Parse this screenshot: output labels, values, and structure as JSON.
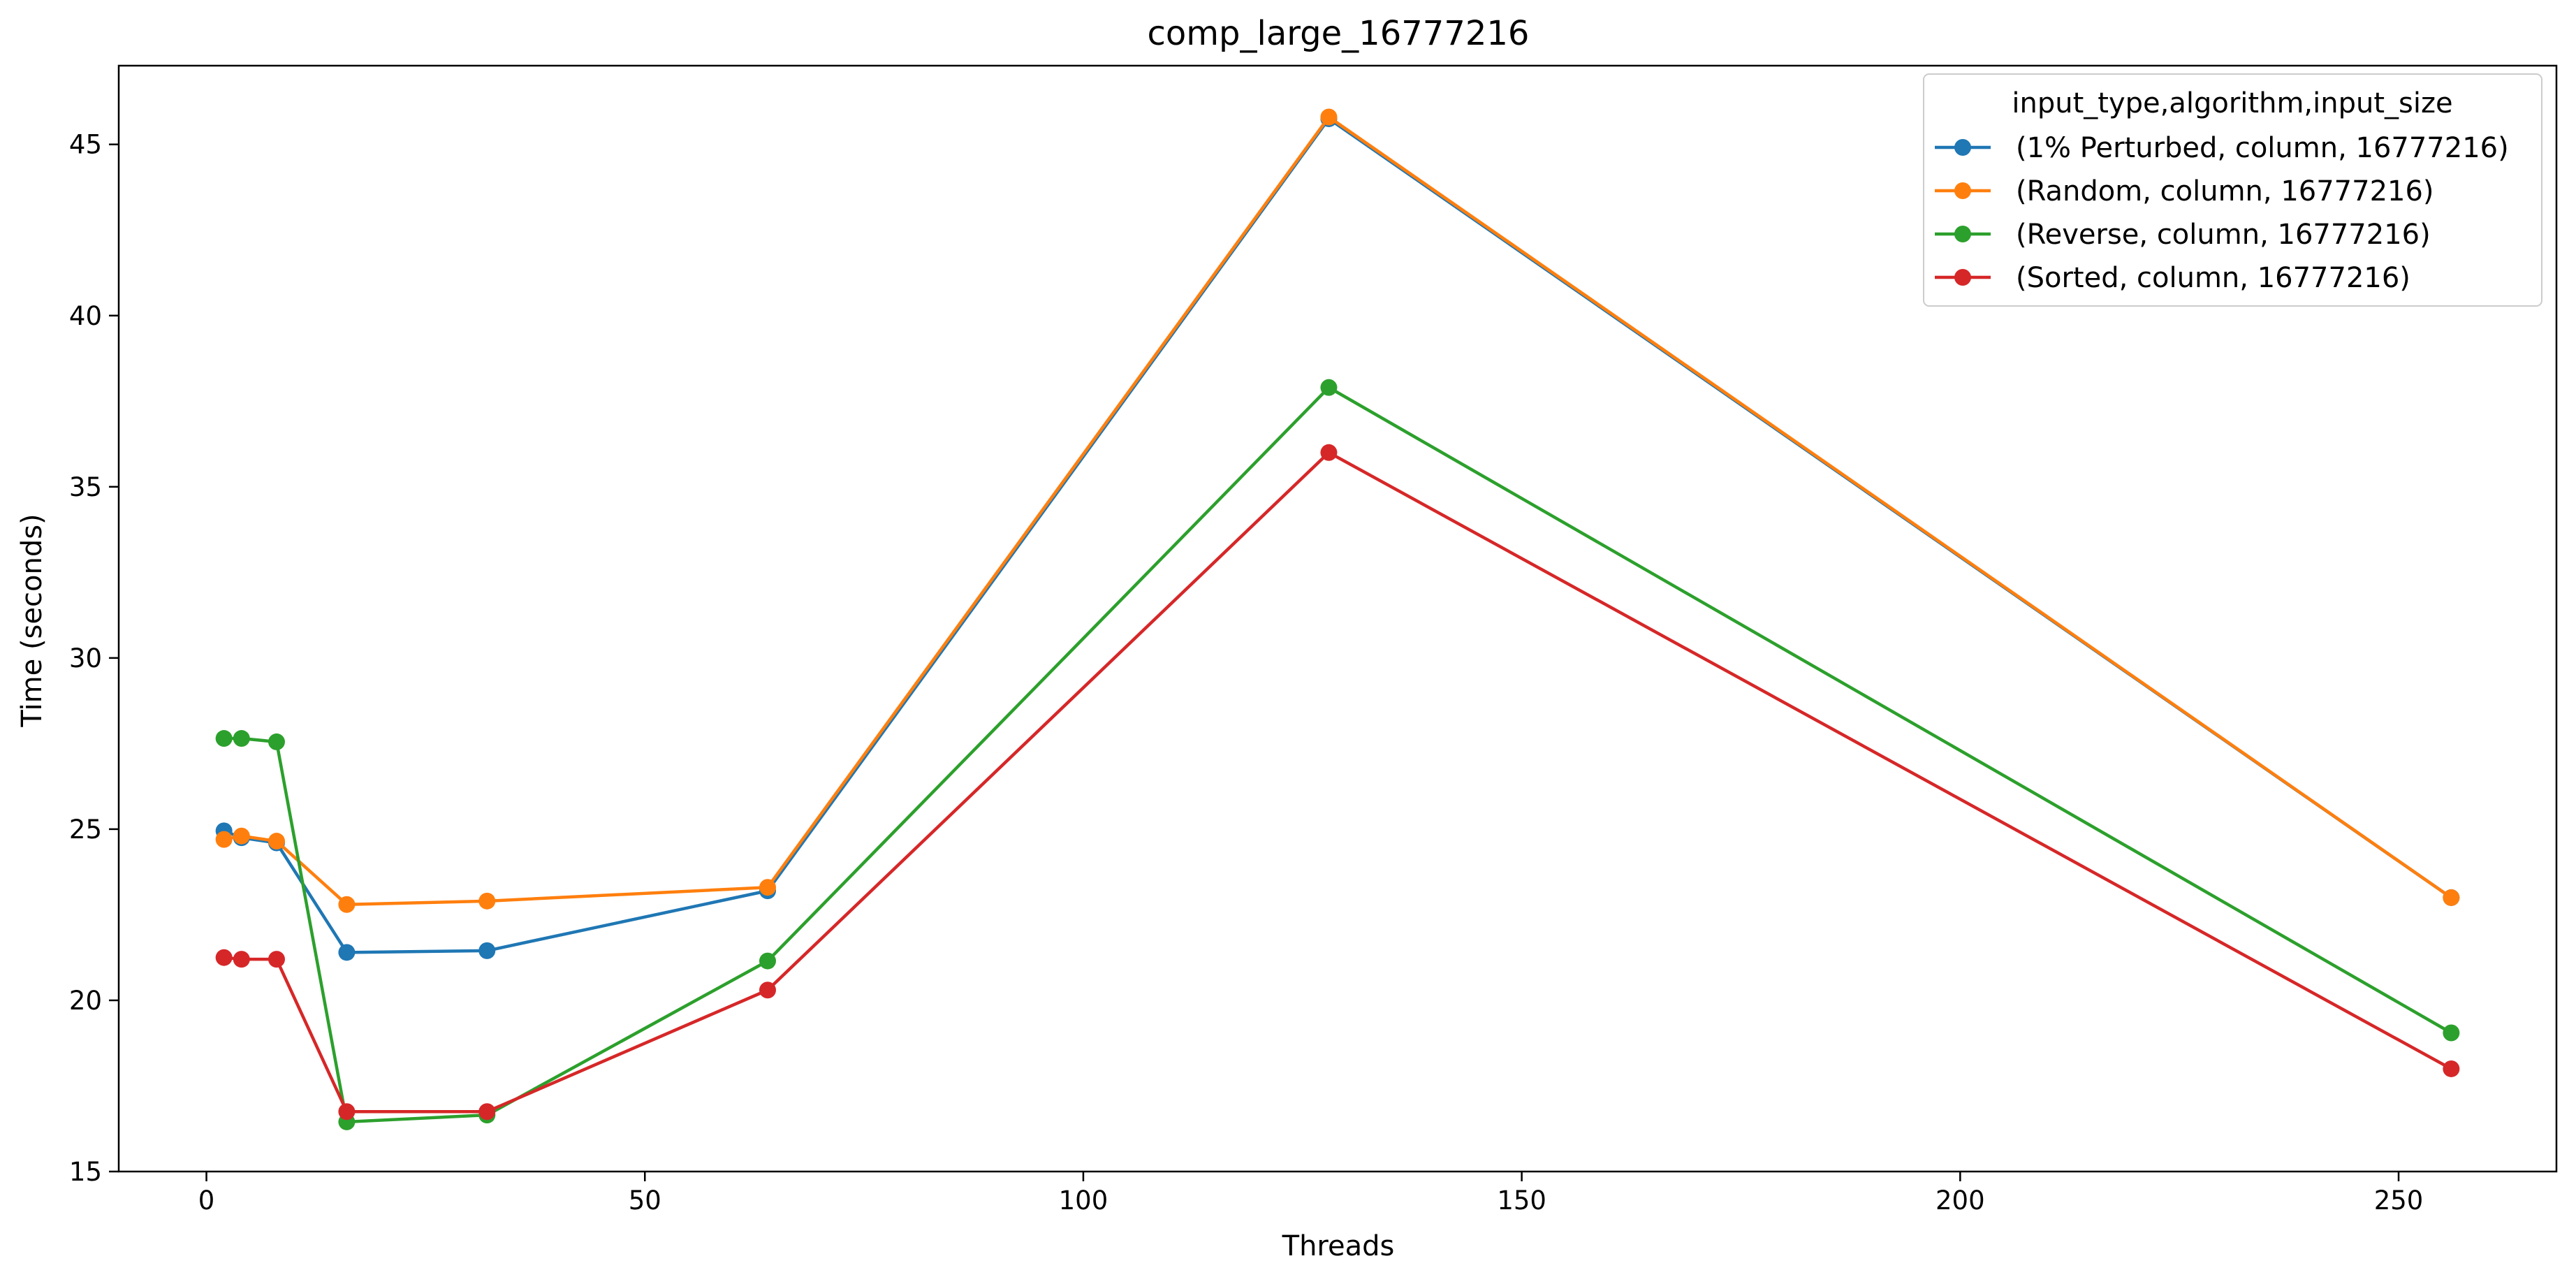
{
  "chart_data": {
    "type": "line",
    "title": "comp_large_16777216",
    "xlabel": "Threads",
    "ylabel": "Time (seconds)",
    "xlim": [
      -10,
      268
    ],
    "ylim": [
      15,
      47.3
    ],
    "xticks": [
      0,
      50,
      100,
      150,
      200,
      250
    ],
    "yticks": [
      15,
      20,
      25,
      30,
      35,
      40,
      45
    ],
    "grid": false,
    "legend": {
      "title": "input_type,algorithm,input_size",
      "placement": "top-right"
    },
    "x": [
      2,
      4,
      8,
      16,
      32,
      64,
      128,
      256
    ],
    "series": [
      {
        "name": "(1% Perturbed, column, 16777216)",
        "color": "#1f77b4",
        "values": [
          24.95,
          24.75,
          24.6,
          21.4,
          21.45,
          23.2,
          45.75,
          23.0
        ]
      },
      {
        "name": "(Random, column, 16777216)",
        "color": "#ff7f0e",
        "values": [
          24.7,
          24.8,
          24.65,
          22.8,
          22.9,
          23.3,
          45.8,
          23.0
        ]
      },
      {
        "name": "(Reverse, column, 16777216)",
        "color": "#2ca02c",
        "values": [
          27.65,
          27.65,
          27.55,
          16.45,
          16.65,
          21.15,
          37.9,
          19.05
        ]
      },
      {
        "name": "(Sorted, column, 16777216)",
        "color": "#d62728",
        "values": [
          21.25,
          21.2,
          21.2,
          16.75,
          16.75,
          20.3,
          36.0,
          18.0
        ]
      }
    ]
  }
}
